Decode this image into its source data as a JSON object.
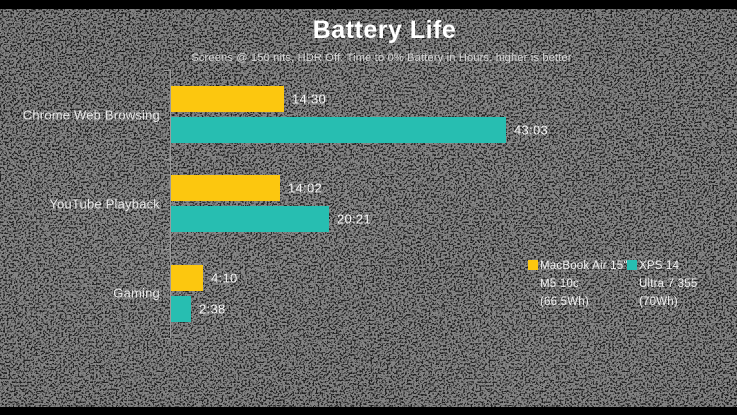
{
  "chart_data": {
    "type": "bar",
    "orientation": "horizontal",
    "title": "Battery Life",
    "subtitle": "Screens @ 150 nits, HDR Off, Time to 0% Battery in Hours, higher is better",
    "categories": [
      "Chrome Web Browsing",
      "YouTube Playback",
      "Gaming"
    ],
    "series": [
      {
        "name": "MacBook Air 15\" M5 10c (66.5Wh)",
        "color": "#FCC70F",
        "labels": [
          "14:30",
          "14:02",
          "4:10"
        ],
        "hours": [
          14.5,
          14.033,
          4.167
        ]
      },
      {
        "name": "XPS 14 Ultra 7 355 (70Wh)",
        "color": "#27BEB1",
        "labels": [
          "43:03",
          "20:21",
          "2:38"
        ],
        "hours": [
          43.05,
          20.35,
          2.633
        ]
      }
    ],
    "xlim": [
      0,
      44.5
    ],
    "value_format": "h:mm",
    "grid": false,
    "legend_position": "right",
    "legend": [
      {
        "lines": [
          "MacBook Air 15\"",
          "M5 10c",
          "(66.5Wh)"
        ],
        "color": "#FCC70F"
      },
      {
        "lines": [
          "XPS 14",
          "Ultra 7 355",
          "(70Wh)"
        ],
        "color": "#27BEB1"
      }
    ],
    "axis_color": "#9b9b9b",
    "background_color": "#0a0a0a"
  }
}
